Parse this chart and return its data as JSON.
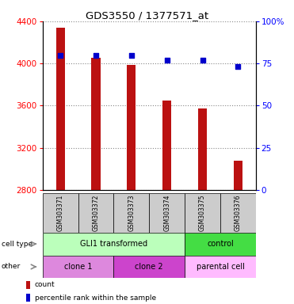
{
  "title": "GDS3550 / 1377571_at",
  "samples": [
    "GSM303371",
    "GSM303372",
    "GSM303373",
    "GSM303374",
    "GSM303375",
    "GSM303376"
  ],
  "counts": [
    4340,
    4050,
    3985,
    3650,
    3575,
    3080
  ],
  "percentiles": [
    80,
    80,
    80,
    77,
    77,
    73
  ],
  "ylim_left": [
    2800,
    4400
  ],
  "yticks_left": [
    2800,
    3200,
    3600,
    4000,
    4400
  ],
  "ylim_right": [
    0,
    100
  ],
  "yticks_right": [
    0,
    25,
    50,
    75,
    100
  ],
  "bar_color": "#bb1111",
  "dot_color": "#0000cc",
  "bar_width": 0.25,
  "cell_type_labels": [
    "GLI1 transformed",
    "control"
  ],
  "cell_type_col_spans": [
    4,
    2
  ],
  "cell_type_colors": [
    "#bbffbb",
    "#44dd44"
  ],
  "other_labels": [
    "clone 1",
    "clone 2",
    "parental cell"
  ],
  "other_col_spans": [
    2,
    2,
    2
  ],
  "other_colors": [
    "#dd88dd",
    "#cc44cc",
    "#ffbbff"
  ],
  "sample_bg_color": "#cccccc",
  "grid_color": "#888888",
  "bg_color": "#ffffff"
}
